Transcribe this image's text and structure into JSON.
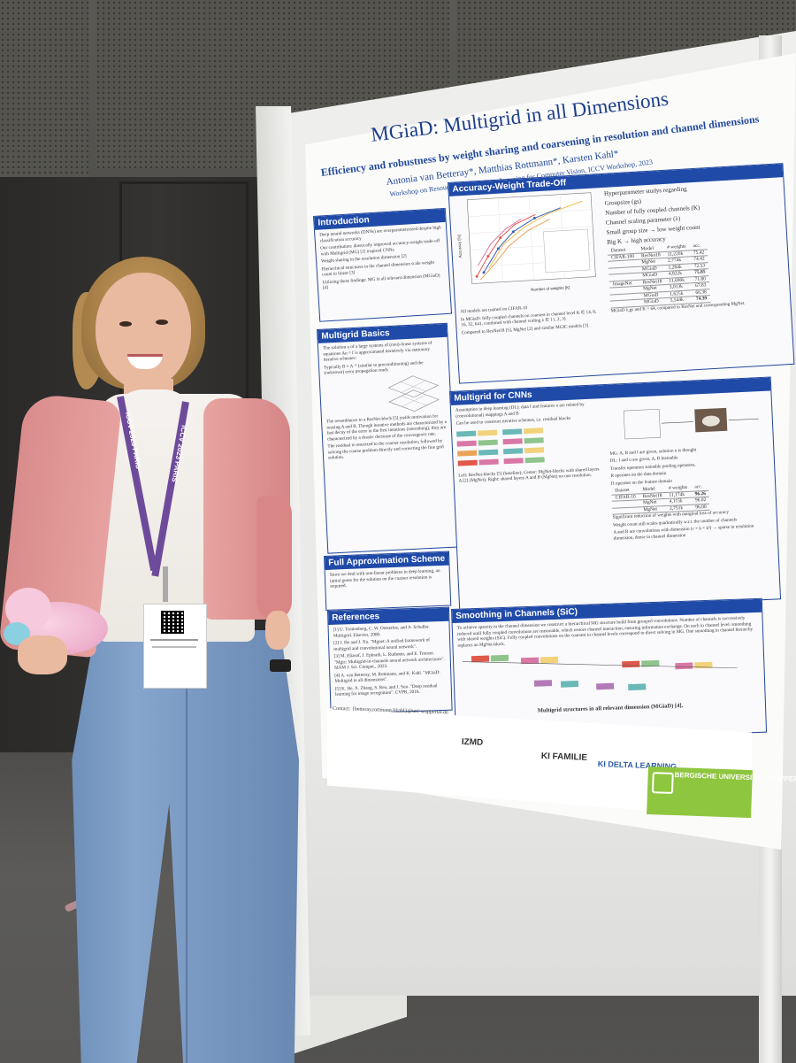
{
  "poster": {
    "title": "MGiaD: Multigrid in all Dimensions",
    "subtitle": "Efficiency and robustness by weight sharing and coarsening in resolution and channel dimensions",
    "authors": "Antonia van Betteray*, Matthias Rottmann*, Karsten Kahl*",
    "venue": "Workshop on Resource Efficient Deep Learning for Computer Vision, ICCV Workshop, 2023",
    "sections": {
      "introduction": {
        "heading": "Introduction",
        "bullets": [
          "Deep neural networks (DNNs) are overparameterized despite high classification accuracy",
          "Our contribution: drastically improved accuracy-weight trade-off with Multigrid (MG) [1] inspired CNNs",
          "Weight sharing in the resolution dimension [2]",
          "Hierarchical structures in the channel dimension scale weight count to linear [3]",
          "Utilizing these findings: MG in all relevant dimension (MGiaD) [4]"
        ]
      },
      "multigrid_basics": {
        "heading": "Multigrid Basics",
        "text": [
          "The solution u of a large systems of (non)-linear systems of equations Au = f is approximated iteratively via stationary iterative schemes:",
          "Typically B ≈ A⁻¹ (similar to preconditioning) and the (unknown) error propagation reads",
          "The resemblance to a ResNet-block [5] yields motivation for reusing A and B. Though iterative methods are characterized by a fast decay of the error in the first iterations (smoothing), they are characterized by a drastic decrease of the convergence rate.",
          "The residual is restricted to the coarser resolution, followed by solving the coarse problem directly and correcting the fine grid solution."
        ]
      },
      "full_approximation": {
        "heading": "Full Approximation Scheme",
        "text": "Since we deal with non-linear problems in deep learning, an initial guess for the solution on the coarser resolution is required."
      },
      "references": {
        "heading": "References",
        "items": [
          "[1] U. Trottenberg, C. W. Oosterlee, and A. Schuller. Multigrid. Elsevier, 2000.",
          "[2] J. He and J. Xu. \"Mgnet: A unified framework of multigrid and convolutional neural network\".",
          "[3] M. Eliasof, J. Ephrath, L. Ruthotto, and E. Treister. \"Mgic: Multigrid-in-channels neural network architectures\". SIAM J. Sci. Comput., 2023.",
          "[4] A. van Betteray, M. Rottmann, and K. Kahl. \"MGiaD: Multigrid in all dimensions\".",
          "[5] K. He, X. Zhang, S. Ren, and J. Sun. \"Deep residual learning for image recognition\". CVPR, 2016."
        ]
      },
      "accuracy_tradeoff": {
        "heading": "Accuracy-Weight Trade-Off",
        "hyper_title": "Hyperparameter studys regarding",
        "hyper_items": [
          "Groupsize (gs)",
          "Number of fully coupled channels (K)",
          "Channel scaling parameter (λ)",
          "Small group size → low weight count",
          "Big K → high accuracy"
        ],
        "plot_xlabel": "Number of weights [K]",
        "plot_ylabel": "Accuracy [%]",
        "bullets": [
          "All models are trained on CIFAR-10",
          "In MGiaD: fully coupled channels on coarsest in channel level K ∈ {4, 8, 16, 32, 64}, combined with channel scaling λ ∈ {1, 2, 3}",
          "Compared to ResNet18 [5], MgNet [2] and similar MGIC models [3]"
        ],
        "caption": "MGiaD λ,gs and K = 64, compared to ResNet and corresponding MgNet.",
        "table": {
          "headers": [
            "Dataset",
            "Model",
            "# weights",
            "acc."
          ],
          "rows": [
            [
              "CIFAR-100",
              "ResNet18",
              "11,220k",
              "75.42"
            ],
            [
              "",
              "MgNet",
              "2,774k",
              "74.42"
            ],
            [
              "",
              "MGiaD",
              "1,284k",
              "72.53"
            ],
            [
              "",
              "MGiaD",
              "4,822k",
              "75.85"
            ],
            [
              "ImageNet",
              "ResNet18",
              "11,690k",
              "71.80"
            ],
            [
              "",
              "MgNet",
              "3,013k",
              "67.83"
            ],
            [
              "",
              "MGiaD",
              "1,625k",
              "66.38"
            ],
            [
              "",
              "MGiaD",
              "5,544k",
              "74.39"
            ]
          ]
        }
      },
      "multigrid_cnns": {
        "heading": "Multigrid for CNNs",
        "bullets_left": [
          "Assumption in deep learning (DL): data f and features u are related by (convolutional) mappings A and B",
          "Can be used to construct iterative schemes, i.e. residual blocks"
        ],
        "bullets_right": [
          "MG: A, B and f are given, solution u is thought",
          "DL: f and u are given, A, B learnable",
          "Transfer operators trainable pooling operators,",
          "R operates on the data domain",
          "Π operates on the feature domain"
        ],
        "caption": "Left: ResNet-blocks [5] (baseline); Center: MgNet-blocks with shared layers A [2] (MgNet); Right: shared layers A and B (MgNet) on one resolution.",
        "table": {
          "headers": [
            "Dataset",
            "Model",
            "# weights",
            "acc."
          ],
          "rows": [
            [
              "CIFAR-10",
              "ResNet18",
              "11,174k",
              "96.26"
            ],
            [
              "",
              "MgNet",
              "4,115k",
              "96.02"
            ],
            [
              "",
              "MgNet",
              "2,751k",
              "96.00"
            ]
          ]
        },
        "bullets_after": [
          "Significant reduction of weights with marginal loss of accuracy",
          "Weight count still scales quadratically w.r.t. the number of channels",
          "A and B are convolutions with dimension (c × h × k²) → sparse in resolution dimension, dense in channel dimension"
        ]
      },
      "smoothing": {
        "heading": "Smoothing in Channels (SiC)",
        "text": "To achieve sparsity in the channel dimension we construct a hierarchical MG structure build from grouped convolutions. Number of channels is successively reduced until fully coupled convolutions are reasonable, which restore channel interaction, ensuring information exchange. On each in channel level: smoothing with shared weights (SiC). Fully coupled convolutions on the coarsest in channel levels correspond to direct solving in MG. One smoothing in channel hierarchy replaces an MgNet-block.",
        "caption": "Multigrid structures in all relevant dimension (MGiaD) [4]."
      }
    },
    "footer": {
      "acknowledgement": "Acknowledgements: This work is partly funded by the German Federal Ministry for Economic Affairs and Climate Action. *University of Wuppertal",
      "contact": "Contact: {betteray,rottmann,kkahl}@uni-wuppertal.de",
      "logos": {
        "izmd": "IZMD",
        "ki": "KI FAMILIE",
        "kidelta": "KI DELTA LEARNING",
        "buw": "BERGISCHE UNIVERSITÄT WUPPERTAL"
      }
    }
  },
  "lanyard": {
    "left_text": "ICCV 2023 PARIS",
    "right_text": "ICCV 2023 PARIS"
  },
  "colors": {
    "poster_blue": "#1f4aa8",
    "cardigan": "#e09a98",
    "jeans": "#7a9ac3",
    "lanyard": "#6e4b9a",
    "logo_green": "#8ec63f"
  }
}
